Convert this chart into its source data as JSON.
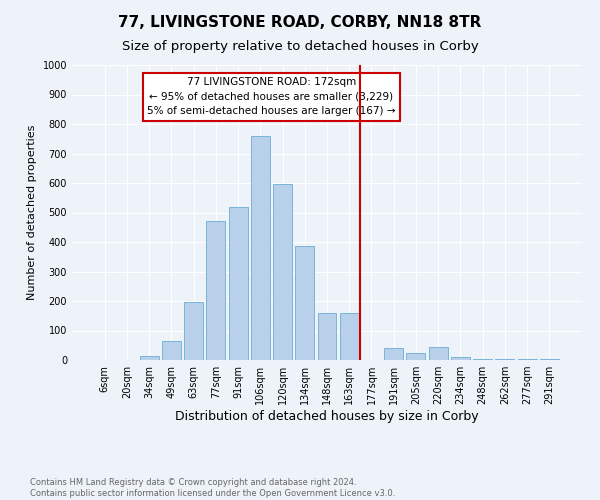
{
  "title1": "77, LIVINGSTONE ROAD, CORBY, NN18 8TR",
  "title2": "Size of property relative to detached houses in Corby",
  "xlabel": "Distribution of detached houses by size in Corby",
  "ylabel": "Number of detached properties",
  "footnote": "Contains HM Land Registry data © Crown copyright and database right 2024.\nContains public sector information licensed under the Open Government Licence v3.0.",
  "bar_labels": [
    "6sqm",
    "20sqm",
    "34sqm",
    "49sqm",
    "63sqm",
    "77sqm",
    "91sqm",
    "106sqm",
    "120sqm",
    "134sqm",
    "148sqm",
    "163sqm",
    "177sqm",
    "191sqm",
    "205sqm",
    "220sqm",
    "234sqm",
    "248sqm",
    "262sqm",
    "277sqm",
    "291sqm"
  ],
  "bar_values": [
    0,
    0,
    15,
    63,
    197,
    470,
    518,
    758,
    597,
    388,
    158,
    158,
    0,
    40,
    25,
    43,
    10,
    3,
    2,
    2,
    2
  ],
  "bar_color": "#b8d0ea",
  "bar_edge_color": "#6aaed6",
  "vline_color": "#cc0000",
  "annotation_text": "77 LIVINGSTONE ROAD: 172sqm\n← 95% of detached houses are smaller (3,229)\n5% of semi-detached houses are larger (167) →",
  "annotation_box_color": "#cc0000",
  "ylim": [
    0,
    1000
  ],
  "yticks": [
    0,
    100,
    200,
    300,
    400,
    500,
    600,
    700,
    800,
    900,
    1000
  ],
  "bg_color": "#eef2f9",
  "grid_color": "#ffffff",
  "title1_fontsize": 11,
  "title2_fontsize": 9.5,
  "xlabel_fontsize": 9,
  "ylabel_fontsize": 8,
  "tick_fontsize": 7,
  "annotation_fontsize": 7.5
}
